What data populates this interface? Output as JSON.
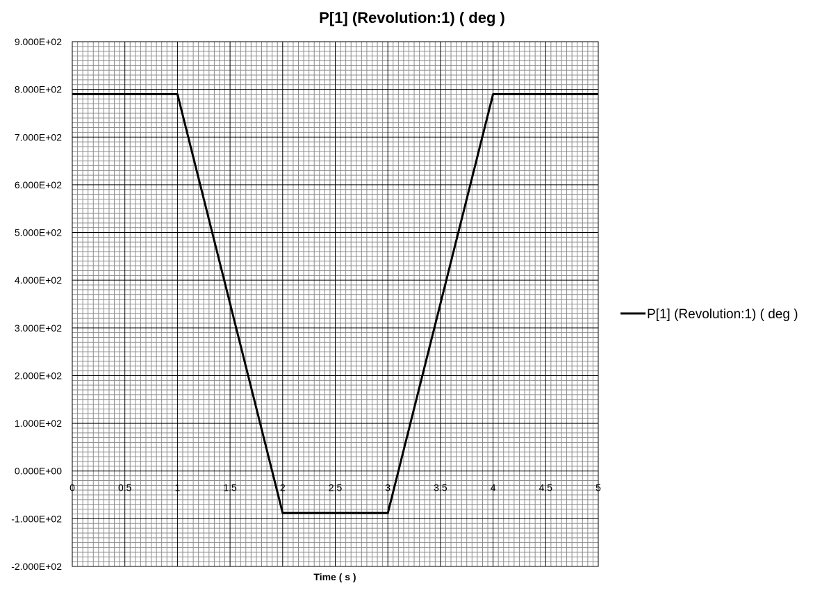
{
  "chart_data": {
    "type": "line",
    "title": "P[1] (Revolution:1) ( deg )",
    "xlabel": "Time ( s )",
    "ylabel": "",
    "xlim": [
      0,
      5
    ],
    "ylim": [
      -200,
      900
    ],
    "x_ticks": [
      "0",
      "0.5",
      "1",
      "1.5",
      "2",
      "2.5",
      "3",
      "3.5",
      "4",
      "4.5",
      "5"
    ],
    "y_ticks": [
      "9.000E+02",
      "8.000E+02",
      "7.000E+02",
      "6.000E+02",
      "5.000E+02",
      "4.000E+02",
      "3.000E+02",
      "2.000E+02",
      "1.000E+02",
      "0.000E+00",
      "-1.000E+02",
      "-2.000E+02"
    ],
    "grid": "major and minor",
    "legend_position": "right",
    "series": [
      {
        "name": "P[1] (Revolution:1) ( deg )",
        "color": "#000000",
        "x": [
          0,
          1,
          2,
          3,
          4,
          5
        ],
        "y": [
          790,
          790,
          -88,
          -88,
          790,
          790
        ]
      }
    ]
  }
}
